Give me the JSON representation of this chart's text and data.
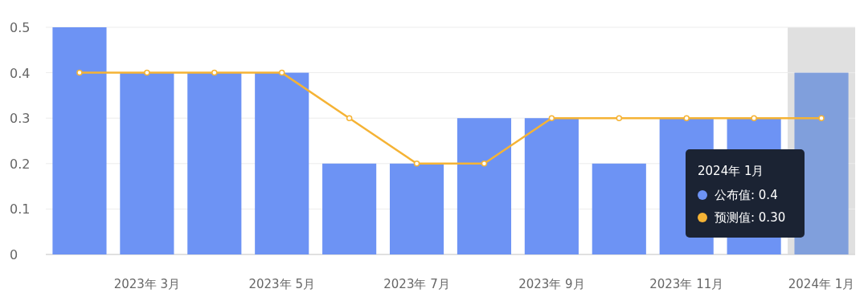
{
  "chart_data": {
    "type": "bar",
    "categories": [
      null,
      "2023年 3月",
      null,
      "2023年 5月",
      null,
      "2023年 7月",
      null,
      "2023年 9月",
      null,
      "2023年 11月",
      null,
      "2024年 1月"
    ],
    "series": [
      {
        "color": "#6d93f4",
        "colors": [
          "#6d93f4",
          "#6d93f4",
          "#6d93f4",
          "#6d93f4",
          "#6d93f4",
          "#6d93f4",
          "#6d93f4",
          "#6d93f4",
          "#6d93f4",
          "#6d93f4",
          "#6d93f4",
          "#809fdc"
        ],
        "values": [
          0.5,
          0.4,
          0.4,
          0.4,
          0.2,
          0.2,
          0.3,
          0.3,
          0.2,
          0.3,
          0.3,
          0.4
        ]
      },
      {
        "type": "line",
        "color": "#f5b335",
        "values": [
          0.4,
          0.4,
          0.4,
          0.4,
          0.3,
          0.2,
          0.2,
          0.3,
          0.3,
          0.3,
          0.3,
          0.3
        ]
      }
    ],
    "ylim": [
      0,
      0.5
    ],
    "yticks": [
      0,
      0.1,
      0.2,
      0.3,
      0.4,
      0.5
    ],
    "grid": "y",
    "marker": "circle",
    "line_style": "solid",
    "annotations": [
      "2024年 1月",
      "公布值: 0.4",
      "预测值: 0.30"
    ],
    "bands": [
      {
        "axis": "x",
        "from": "2024年 1月",
        "to": "2024年 1月",
        "color": "#e0e0e0"
      }
    ]
  }
}
